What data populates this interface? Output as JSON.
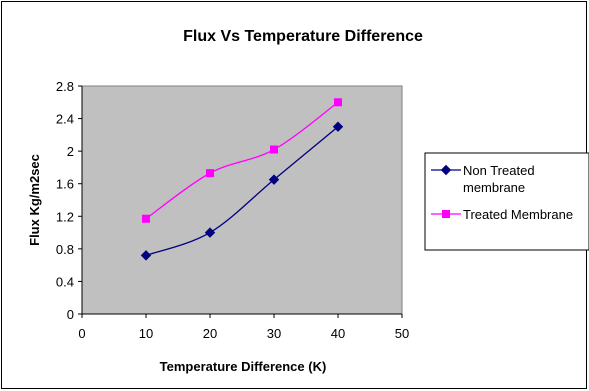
{
  "chart_data": {
    "type": "line",
    "title": "Flux Vs Temperature Difference",
    "xlabel": "Temperature Difference (K)",
    "ylabel": "Flux Kg/m2sec",
    "xlim": [
      0,
      50
    ],
    "ylim": [
      0,
      2.8
    ],
    "x_ticks": [
      "0",
      "10",
      "20",
      "30",
      "40",
      "50"
    ],
    "y_ticks": [
      "0",
      "0.4",
      "0.8",
      "1.2",
      "1.6",
      "2",
      "2.4",
      "2.8"
    ],
    "grid": false,
    "plot_background": "#c0c0c0",
    "legend_position": "right",
    "x": [
      10,
      20,
      30,
      40
    ],
    "series": [
      {
        "name": "Non Treated membrane",
        "legend_lines": [
          "Non Treated",
          "membrane"
        ],
        "values": [
          0.72,
          1.0,
          1.65,
          2.3
        ],
        "color": "#000080",
        "marker": "diamond"
      },
      {
        "name": "Treated Membrane",
        "legend_lines": [
          "Treated Membrane"
        ],
        "values": [
          1.17,
          1.73,
          2.02,
          2.6
        ],
        "color": "#ff00ff",
        "marker": "square"
      }
    ]
  }
}
